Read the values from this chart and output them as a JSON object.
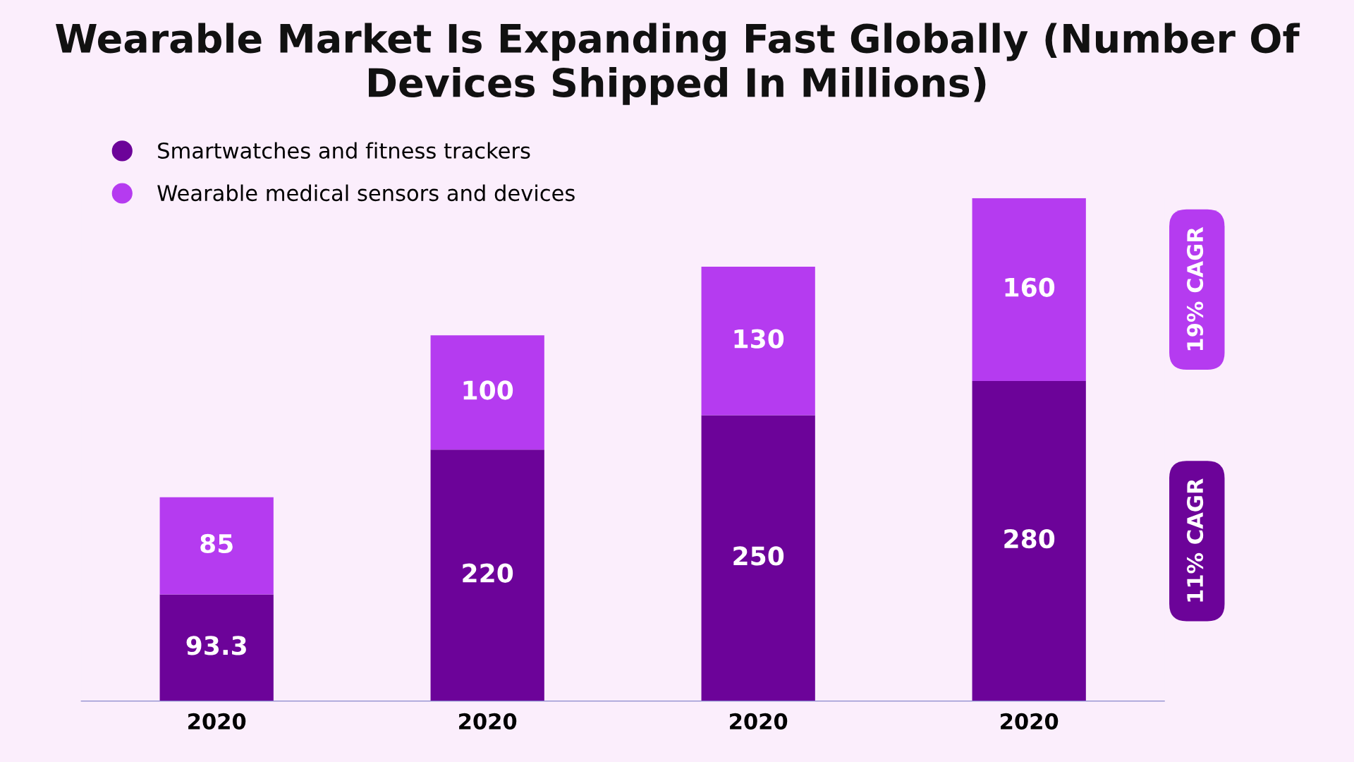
{
  "chart_data": {
    "type": "bar",
    "title": "Wearable Market Is Expanding Fast Globally (Number Of Devices Shipped In Millions)",
    "categories": [
      "2020",
      "2020",
      "2020",
      "2020"
    ],
    "series": [
      {
        "name": "Smartwatches and fitness trackers",
        "color": "#6c0399",
        "values": [
          93.3,
          220,
          250,
          280
        ]
      },
      {
        "name": "Wearable medical sensors and devices",
        "color": "#b53bf0",
        "values": [
          85,
          100,
          130,
          160
        ]
      }
    ],
    "stacked": true,
    "data_labels": true,
    "legend": "top left",
    "grid": false,
    "annotations": [
      "19% CAGR",
      "11% CAGR"
    ]
  }
}
